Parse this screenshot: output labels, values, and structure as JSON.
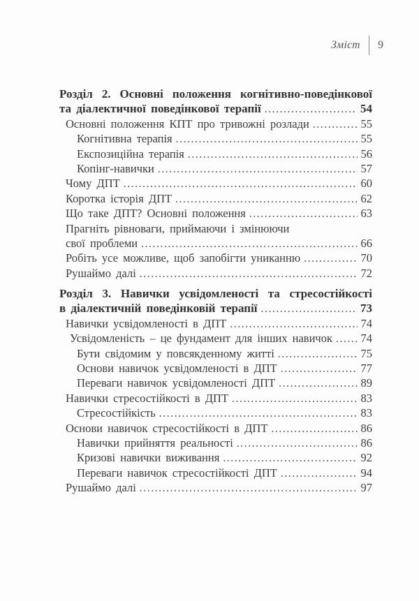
{
  "page": {
    "background": "#fdfdfd",
    "ink": "#3c3c3c",
    "heading_ink": "#313131",
    "muted_ink": "#4f4f4f"
  },
  "header": {
    "title": "Зміст",
    "page_number": "9"
  },
  "toc": {
    "rows": [
      {
        "text": "Розділ 2. Основні положення когнітивно-поведінкової",
        "level": 0,
        "bold": true
      },
      {
        "text": "та діалектичної поведінкової терапії",
        "page": "54",
        "level": 0,
        "bold": true
      },
      {
        "text": "Основні положення КПТ про тривожні розлади",
        "page": "55",
        "level": 1,
        "bold": false
      },
      {
        "text": "Когнітивна терапія",
        "page": "55",
        "level": 2,
        "bold": false
      },
      {
        "text": "Експозиційна терапія",
        "page": "56",
        "level": 2,
        "bold": false
      },
      {
        "text": "Копінг-навички",
        "page": "57",
        "level": 2,
        "bold": false
      },
      {
        "text": "Чому ДПТ",
        "page": "60",
        "level": 1,
        "bold": false
      },
      {
        "text": "Коротка історія ДПТ",
        "page": "62",
        "level": 1,
        "bold": false
      },
      {
        "text": "Що таке ДПТ? Основні положення",
        "page": "63",
        "level": 1,
        "bold": false
      },
      {
        "text": "Прагніть рівноваги, приймаючи і змінюючи",
        "level": 1,
        "bold": false
      },
      {
        "text": "свої проблеми",
        "page": "66",
        "level": 1,
        "bold": false
      },
      {
        "text": "Робіть усе можливе, щоб запобігти униканню",
        "page": "70",
        "level": 1,
        "bold": false
      },
      {
        "text": "Рушаймо далі",
        "page": "72",
        "level": 1,
        "bold": false
      },
      {
        "text": "Розділ 3. Навички усвідомленості та стресостійкості",
        "level": 0,
        "bold": true
      },
      {
        "text": "в діалектичній поведінковій терапії",
        "page": "73",
        "level": 0,
        "bold": true
      },
      {
        "text": "Навички усвідомленості в ДПТ",
        "page": "74",
        "level": 1,
        "bold": false
      },
      {
        "text": "Усвідомленість – це фундамент для інших навичок",
        "page": "74",
        "level": 2,
        "bold": false
      },
      {
        "text": "Бути свідомим у повсякденному житті",
        "page": "75",
        "level": 2,
        "bold": false
      },
      {
        "text": "Основи навичок усвідомленості в ДПТ",
        "page": "77",
        "level": 2,
        "bold": false
      },
      {
        "text": "Переваги навичок усвідомленості ДПТ",
        "page": "89",
        "level": 2,
        "bold": false
      },
      {
        "text": "Навички стресостійкості в ДПТ",
        "page": "83",
        "level": 1,
        "bold": false
      },
      {
        "text": "Стресостійкість",
        "page": "83",
        "level": 2,
        "bold": false
      },
      {
        "text": "Основи навичок стресостійкості в ДПТ",
        "page": "86",
        "level": 1,
        "bold": false
      },
      {
        "text": "Навички прийняття реальності",
        "page": "86",
        "level": 2,
        "bold": false
      },
      {
        "text": "Кризові навички виживання",
        "page": "92",
        "level": 2,
        "bold": false
      },
      {
        "text": "Переваги навичок стресостійкості ДПТ",
        "page": "94",
        "level": 2,
        "bold": false
      },
      {
        "text": "Рушаймо далі",
        "page": "97",
        "level": 1,
        "bold": false
      }
    ]
  }
}
